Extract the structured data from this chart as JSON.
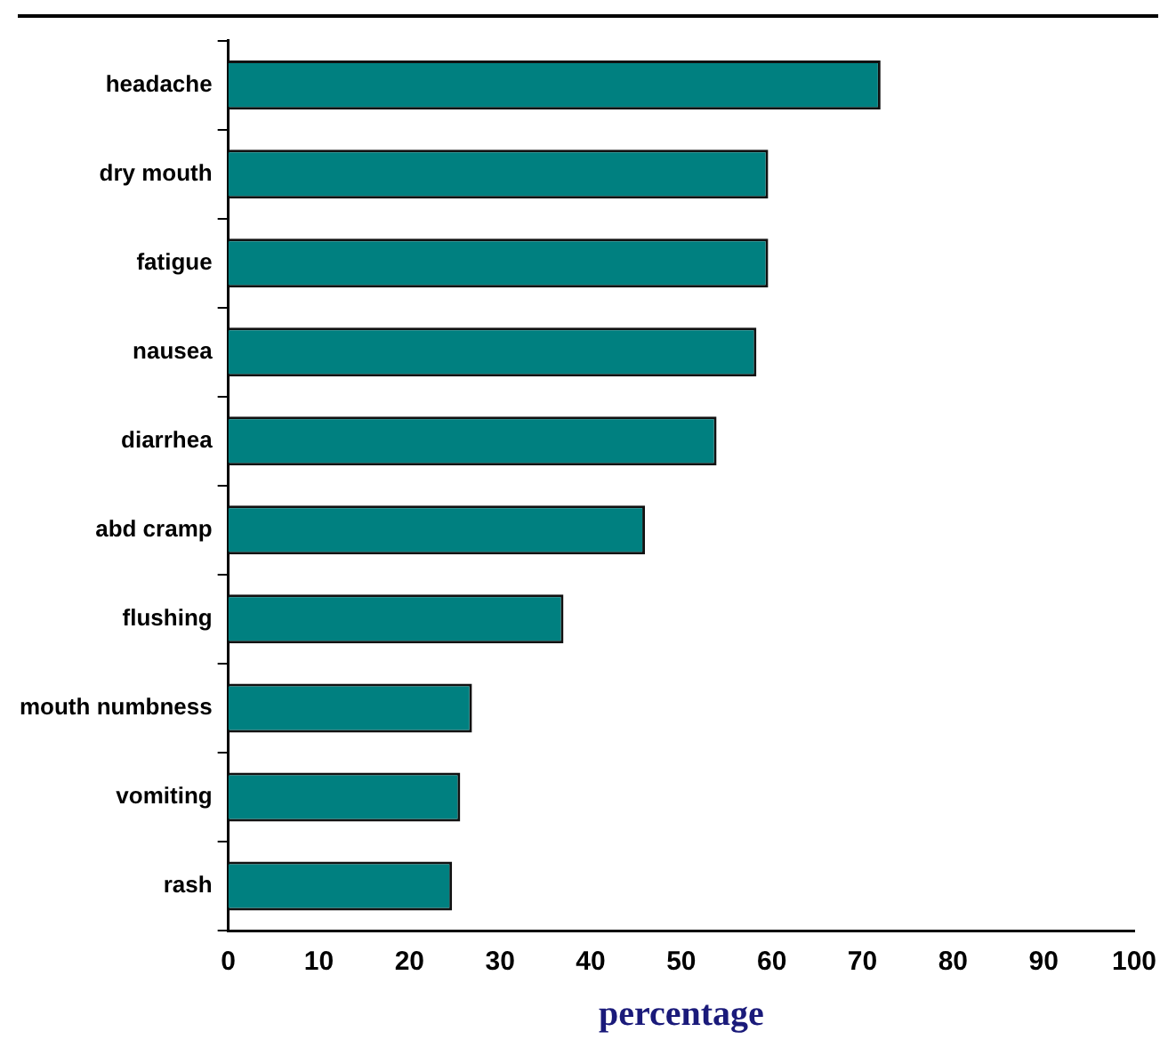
{
  "chart_data": {
    "type": "bar",
    "orientation": "horizontal",
    "categories": [
      "headache",
      "dry mouth",
      "fatigue",
      "nausea",
      "diarrhea",
      "abd cramp",
      "flushing",
      "mouth numbness",
      "vomiting",
      "rash"
    ],
    "values": [
      72,
      59.6,
      59.6,
      58.3,
      53.9,
      46,
      37,
      26.9,
      25.6,
      24.7
    ],
    "color": "#008080",
    "xlim": [
      0,
      100
    ],
    "xticks": [
      0,
      10,
      20,
      30,
      40,
      50,
      60,
      70,
      80,
      90,
      100
    ],
    "xlabel": "percentage",
    "grid": false,
    "legend": false
  }
}
